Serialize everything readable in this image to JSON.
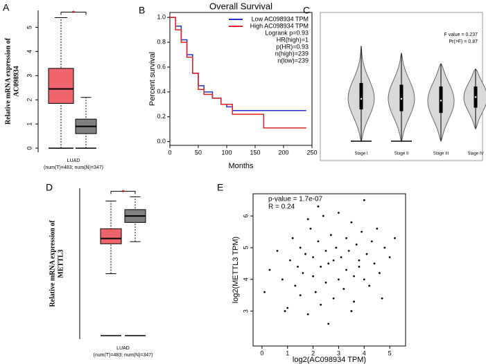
{
  "chart_data": [
    {
      "type": "box",
      "panel_label": "A",
      "ylabel": [
        "Relative mRNA expression of",
        "AC098934"
      ],
      "category": "LUAD",
      "sublabel": "(num(T)=483; num(N)=347)",
      "significance": "*",
      "ylim": [
        -0.17,
        5.7
      ],
      "yticks": [
        0,
        1,
        2,
        3,
        4,
        5
      ],
      "boxes": [
        {
          "color": "#f0646e",
          "whisker_low": 0,
          "q1": 1.85,
          "median": 2.45,
          "q3": 3.3,
          "whisker_high": 5.4
        },
        {
          "color": "#808080",
          "whisker_low": 0,
          "q1": 0.6,
          "median": 0.9,
          "q3": 1.2,
          "whisker_high": 2.1
        }
      ]
    },
    {
      "type": "survival",
      "panel_label": "B",
      "title": "Overall Survival",
      "xlabel": "Months",
      "ylabel": "Percent survival",
      "xlim": [
        0,
        250
      ],
      "xticks": [
        0,
        50,
        100,
        150,
        200,
        250
      ],
      "ylim": [
        -0.03,
        1.04
      ],
      "yticks": [
        {
          "value": 0,
          "label": "0.0"
        },
        0.2,
        0.4,
        0.6,
        0.8,
        {
          "value": 1,
          "label": "1.0"
        }
      ],
      "legend": "upper right",
      "annotations": [
        "Logrank p=0.93",
        "HR(high)=1",
        "p(HR)=0.93",
        "n(high)=239",
        "n(low)=239"
      ],
      "series": [
        {
          "name": "Low AC098934 TPM",
          "color": "#2233cc",
          "x": [
            0,
            10,
            20,
            30,
            40,
            50,
            60,
            75,
            90,
            100,
            110,
            240
          ],
          "values": [
            1,
            0.93,
            0.82,
            0.7,
            0.55,
            0.45,
            0.4,
            0.35,
            0.3,
            0.28,
            0.25,
            0.25
          ]
        },
        {
          "name": "High AC098934 TPM",
          "color": "#dd2222",
          "x": [
            0,
            10,
            20,
            30,
            40,
            50,
            60,
            75,
            90,
            110,
            165,
            240
          ],
          "values": [
            1,
            0.9,
            0.8,
            0.68,
            0.55,
            0.42,
            0.38,
            0.35,
            0.3,
            0.22,
            0.11,
            0.11
          ]
        }
      ]
    },
    {
      "type": "violin",
      "panel_label": "C",
      "categories": [
        "Stage I",
        "Stage II",
        "Stage III",
        "Stage IV"
      ],
      "annotations": [
        "F value = 0.237",
        "Pr(>F) = 0.87"
      ],
      "ylim": [
        -1.1,
        7.3
      ],
      "color": "#d9d9d9",
      "violins": [
        {
          "min": 0,
          "q1": 1.8,
          "median": 2.4,
          "q3": 3.3,
          "max": 5.4
        },
        {
          "min": 0,
          "q1": 1.7,
          "median": 2.4,
          "q3": 3.2,
          "max": 5.0
        },
        {
          "min": 0,
          "q1": 1.6,
          "median": 2.3,
          "q3": 3.1,
          "max": 4.4
        },
        {
          "min": 0.7,
          "q1": 1.9,
          "median": 2.5,
          "q3": 3.1,
          "max": 4.1
        }
      ]
    },
    {
      "type": "box",
      "panel_label": "D",
      "ylabel": [
        "Relative mRNA expression of",
        "METTL3"
      ],
      "category": "LUAD",
      "sublabel": "(num(T)=483; num(N)=347)",
      "significance": "*",
      "ylim": [
        -0.16,
        6.9
      ],
      "boxes": [
        {
          "color": "#f0646e",
          "whisker_low": 2.9,
          "q1": 4.3,
          "median": 4.55,
          "q3": 5.0,
          "whisker_high": 6.3
        },
        {
          "color": "#808080",
          "whisker_low": 4.4,
          "q1": 5.3,
          "median": 5.6,
          "q3": 5.9,
          "whisker_high": 6.5
        }
      ]
    },
    {
      "type": "scatter",
      "panel_label": "E",
      "xlabel": "log2(AC098934 TPM)",
      "ylabel": "log2(METTL3 TPM)",
      "annotations": [
        "p-value = 1.7e-07",
        "R = 0.24"
      ],
      "xlim": [
        -0.35,
        5.62
      ],
      "xticks": [
        0,
        1,
        2,
        3,
        4,
        5
      ],
      "ylim": [
        1.9,
        6.7
      ],
      "yticks": [
        3,
        4,
        5,
        6
      ],
      "color": "#000000",
      "x": [
        0.3,
        0.6,
        0.8,
        1.0,
        1.1,
        1.2,
        1.3,
        1.4,
        1.5,
        1.5,
        1.6,
        1.7,
        1.8,
        1.9,
        2.0,
        2.0,
        2.1,
        2.2,
        2.3,
        2.3,
        2.4,
        2.5,
        2.5,
        2.6,
        2.7,
        2.8,
        2.8,
        2.9,
        3.0,
        3.0,
        3.1,
        3.2,
        3.3,
        3.3,
        3.4,
        3.5,
        3.6,
        3.6,
        3.7,
        3.8,
        3.9,
        4.0,
        4.0,
        4.1,
        4.2,
        4.3,
        4.4,
        4.5,
        4.6,
        4.8,
        5.0,
        5.2,
        0.1,
        0.9,
        1.8,
        2.6,
        3.5,
        4.7,
        2.2,
        3.8
      ],
      "values": [
        4.3,
        4.9,
        4.0,
        3.1,
        4.6,
        5.3,
        3.8,
        4.4,
        3.5,
        5.0,
        4.2,
        4.8,
        2.9,
        5.6,
        4.1,
        4.7,
        3.6,
        5.2,
        4.4,
        3.2,
        6.0,
        4.9,
        3.9,
        4.5,
        5.4,
        3.4,
        4.6,
        5.0,
        4.0,
        6.1,
        4.7,
        3.7,
        5.3,
        4.3,
        4.9,
        5.8,
        4.1,
        3.3,
        5.1,
        4.6,
        5.5,
        4.0,
        6.5,
        4.8,
        3.8,
        5.2,
        4.5,
        5.6,
        4.2,
        5.0,
        4.7,
        5.3,
        3.6,
        3.0,
        5.9,
        2.6,
        3.0,
        3.4,
        6.3,
        4.4
      ]
    }
  ]
}
